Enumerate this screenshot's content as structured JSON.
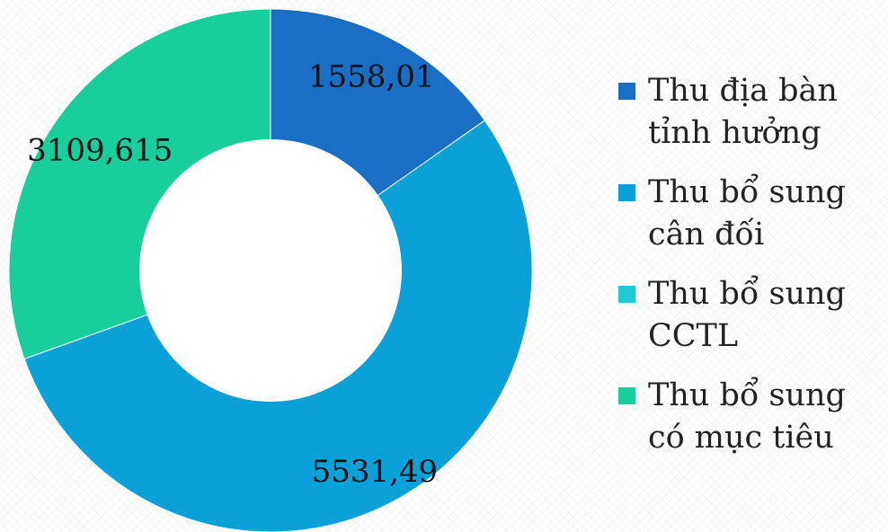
{
  "chart_data": {
    "type": "pie",
    "donut": true,
    "categories": [
      "Thu địa bàn tỉnh hưởng",
      "Thu bổ sung cân đối",
      "Thu bổ sung CCTL",
      "Thu bổ sung có mục tiêu"
    ],
    "values": [
      1558.01,
      5531.49,
      0,
      3109.615
    ],
    "data_labels": [
      "1558,01",
      "5531,49",
      "",
      "3109,615"
    ],
    "colors": [
      "#1a6fc4",
      "#0aa0d8",
      "#1fc9d6",
      "#18cf9b"
    ],
    "legend": {
      "position": "right",
      "items": [
        {
          "label": "Thu địa bàn tỉnh hưởng",
          "color": "#1a6fc4"
        },
        {
          "label": "Thu bổ sung cân đối",
          "color": "#0aa0d8"
        },
        {
          "label": "Thu bổ sung CCTL",
          "color": "#1fc9d6"
        },
        {
          "label": "Thu bổ sung có mục tiêu",
          "color": "#18cf9b"
        }
      ]
    }
  }
}
